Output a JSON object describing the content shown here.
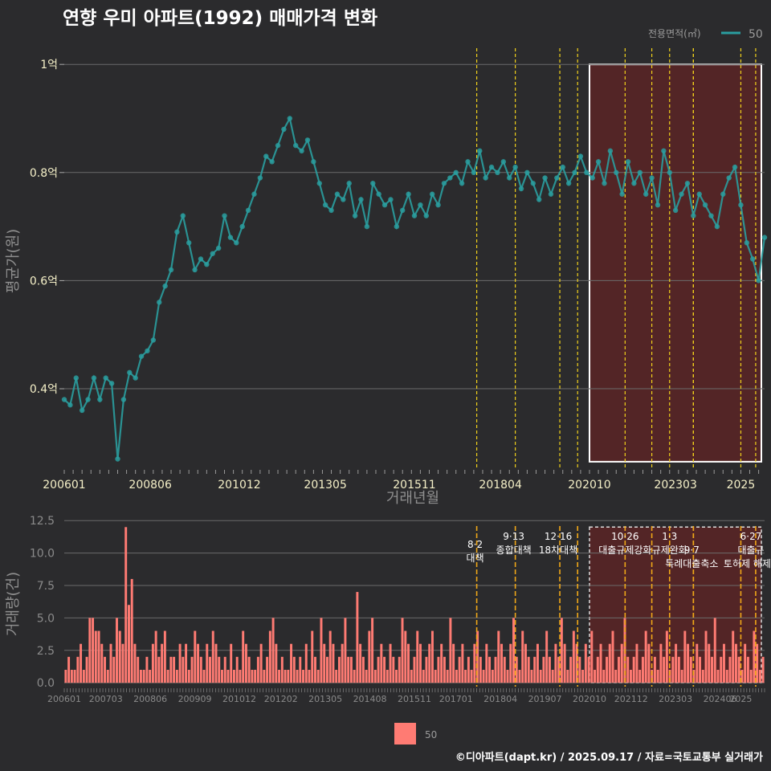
{
  "title": "연향 우미 아파트(1992) 매매가격 변화",
  "caption": "©디아파트(dapt.kr) / 2025.09.17 / 자료=국토교통부 실거래가",
  "colors": {
    "background": "#2b2b2d",
    "price_line": "#2a9d9f",
    "volume_bar": "#ff7b73",
    "policy_line": "#f2d21b",
    "highlight_fill": "#5a2426"
  },
  "chart_data": [
    {
      "type": "line",
      "xlabel": "거래년월",
      "ylabel": "평균가(원)",
      "x_ticks": [
        "200601",
        "200806",
        "201012",
        "201305",
        "201511",
        "201804",
        "202010",
        "202303",
        "2025"
      ],
      "y_ticks": [
        "0.4억",
        "0.6억",
        "0.8억",
        "1억"
      ],
      "y_tick_values": [
        0.4,
        0.6,
        0.8,
        1.0
      ],
      "ylim": [
        0.25,
        1.03
      ],
      "xlim": [
        "2006-01",
        "2025-09"
      ],
      "grid": true,
      "legend": {
        "title": "전용면적(㎡)",
        "position": "top-right",
        "entries": [
          "50"
        ]
      },
      "series": [
        {
          "name": "50",
          "points": [
            [
              "2006-01",
              0.38
            ],
            [
              "2006-03",
              0.37
            ],
            [
              "2006-05",
              0.42
            ],
            [
              "2006-07",
              0.36
            ],
            [
              "2006-09",
              0.38
            ],
            [
              "2006-11",
              0.42
            ],
            [
              "2007-01",
              0.38
            ],
            [
              "2007-03",
              0.42
            ],
            [
              "2007-05",
              0.41
            ],
            [
              "2007-07",
              0.27
            ],
            [
              "2007-09",
              0.38
            ],
            [
              "2007-11",
              0.43
            ],
            [
              "2008-01",
              0.42
            ],
            [
              "2008-03",
              0.46
            ],
            [
              "2008-05",
              0.47
            ],
            [
              "2008-07",
              0.49
            ],
            [
              "2008-09",
              0.56
            ],
            [
              "2008-11",
              0.59
            ],
            [
              "2009-01",
              0.62
            ],
            [
              "2009-03",
              0.69
            ],
            [
              "2009-05",
              0.72
            ],
            [
              "2009-07",
              0.67
            ],
            [
              "2009-09",
              0.62
            ],
            [
              "2009-11",
              0.64
            ],
            [
              "2010-01",
              0.63
            ],
            [
              "2010-03",
              0.65
            ],
            [
              "2010-05",
              0.66
            ],
            [
              "2010-07",
              0.72
            ],
            [
              "2010-09",
              0.68
            ],
            [
              "2010-11",
              0.67
            ],
            [
              "2011-01",
              0.7
            ],
            [
              "2011-03",
              0.73
            ],
            [
              "2011-05",
              0.76
            ],
            [
              "2011-07",
              0.79
            ],
            [
              "2011-09",
              0.83
            ],
            [
              "2011-11",
              0.82
            ],
            [
              "2012-01",
              0.85
            ],
            [
              "2012-03",
              0.88
            ],
            [
              "2012-05",
              0.9
            ],
            [
              "2012-07",
              0.85
            ],
            [
              "2012-09",
              0.84
            ],
            [
              "2012-11",
              0.86
            ],
            [
              "2013-01",
              0.82
            ],
            [
              "2013-03",
              0.78
            ],
            [
              "2013-05",
              0.74
            ],
            [
              "2013-07",
              0.73
            ],
            [
              "2013-09",
              0.76
            ],
            [
              "2013-11",
              0.75
            ],
            [
              "2014-01",
              0.78
            ],
            [
              "2014-03",
              0.72
            ],
            [
              "2014-05",
              0.75
            ],
            [
              "2014-07",
              0.7
            ],
            [
              "2014-09",
              0.78
            ],
            [
              "2014-11",
              0.76
            ],
            [
              "2015-01",
              0.74
            ],
            [
              "2015-03",
              0.75
            ],
            [
              "2015-05",
              0.7
            ],
            [
              "2015-07",
              0.73
            ],
            [
              "2015-09",
              0.76
            ],
            [
              "2015-11",
              0.72
            ],
            [
              "2016-01",
              0.74
            ],
            [
              "2016-03",
              0.72
            ],
            [
              "2016-05",
              0.76
            ],
            [
              "2016-07",
              0.74
            ],
            [
              "2016-09",
              0.78
            ],
            [
              "2016-11",
              0.79
            ],
            [
              "2017-01",
              0.8
            ],
            [
              "2017-03",
              0.78
            ],
            [
              "2017-05",
              0.82
            ],
            [
              "2017-07",
              0.8
            ],
            [
              "2017-09",
              0.84
            ],
            [
              "2017-11",
              0.79
            ],
            [
              "2018-01",
              0.81
            ],
            [
              "2018-03",
              0.8
            ],
            [
              "2018-05",
              0.82
            ],
            [
              "2018-07",
              0.79
            ],
            [
              "2018-09",
              0.81
            ],
            [
              "2018-11",
              0.77
            ],
            [
              "2019-01",
              0.8
            ],
            [
              "2019-03",
              0.78
            ],
            [
              "2019-05",
              0.75
            ],
            [
              "2019-07",
              0.79
            ],
            [
              "2019-09",
              0.76
            ],
            [
              "2019-11",
              0.79
            ],
            [
              "2020-01",
              0.81
            ],
            [
              "2020-03",
              0.78
            ],
            [
              "2020-05",
              0.8
            ],
            [
              "2020-07",
              0.83
            ],
            [
              "2020-09",
              0.8
            ],
            [
              "2020-11",
              0.79
            ],
            [
              "2021-01",
              0.82
            ],
            [
              "2021-03",
              0.78
            ],
            [
              "2021-05",
              0.84
            ],
            [
              "2021-07",
              0.8
            ],
            [
              "2021-09",
              0.76
            ],
            [
              "2021-11",
              0.82
            ],
            [
              "2022-01",
              0.78
            ],
            [
              "2022-03",
              0.8
            ],
            [
              "2022-05",
              0.76
            ],
            [
              "2022-07",
              0.79
            ],
            [
              "2022-09",
              0.74
            ],
            [
              "2022-11",
              0.84
            ],
            [
              "2023-01",
              0.8
            ],
            [
              "2023-03",
              0.73
            ],
            [
              "2023-05",
              0.76
            ],
            [
              "2023-07",
              0.78
            ],
            [
              "2023-09",
              0.72
            ],
            [
              "2023-11",
              0.76
            ],
            [
              "2024-01",
              0.74
            ],
            [
              "2024-03",
              0.72
            ],
            [
              "2024-05",
              0.7
            ],
            [
              "2024-07",
              0.76
            ],
            [
              "2024-09",
              0.79
            ],
            [
              "2024-11",
              0.81
            ],
            [
              "2025-01",
              0.74
            ],
            [
              "2025-03",
              0.67
            ],
            [
              "2025-05",
              0.64
            ],
            [
              "2025-07",
              0.6
            ],
            [
              "2025-09",
              0.68
            ]
          ]
        }
      ],
      "highlight_region": {
        "x_start": "2020-10",
        "x_end": "2025-09",
        "y_start": 0.265,
        "y_end": 1.0
      }
    },
    {
      "type": "bar",
      "xlabel": "",
      "ylabel": "거래량(건)",
      "x_ticks": [
        "200601",
        "200703",
        "200806",
        "200909",
        "201012",
        "201202",
        "201305",
        "201408",
        "201511",
        "201701",
        "201804",
        "201907",
        "202010",
        "202112",
        "202303",
        "202406",
        "2025"
      ],
      "y_ticks": [
        "0.0",
        "2.5",
        "5.0",
        "7.5",
        "10.0",
        "12.5"
      ],
      "y_tick_values": [
        0,
        2.5,
        5,
        7.5,
        10,
        12.5
      ],
      "ylim": [
        -0.3,
        12.7
      ],
      "xlim": [
        "2006-01",
        "2025-09"
      ],
      "legend": {
        "position": "bottom",
        "entries": [
          "50"
        ]
      },
      "values": [
        1,
        2,
        1,
        1,
        2,
        3,
        1,
        2,
        5,
        5,
        4,
        4,
        3,
        2,
        1,
        3,
        2,
        5,
        4,
        3,
        12,
        6,
        8,
        3,
        2,
        1,
        1,
        2,
        1,
        3,
        4,
        2,
        3,
        4,
        1,
        2,
        2,
        1,
        3,
        2,
        3,
        1,
        2,
        4,
        3,
        2,
        1,
        3,
        2,
        4,
        3,
        2,
        1,
        2,
        1,
        3,
        1,
        2,
        1,
        4,
        3,
        2,
        1,
        1,
        2,
        3,
        1,
        2,
        4,
        5,
        3,
        1,
        2,
        1,
        1,
        3,
        2,
        1,
        2,
        1,
        3,
        1,
        4,
        2,
        1,
        5,
        3,
        2,
        4,
        3,
        1,
        2,
        3,
        5,
        2,
        2,
        1,
        7,
        3,
        2,
        1,
        4,
        5,
        1,
        2,
        3,
        2,
        1,
        3,
        2,
        1,
        2,
        5,
        4,
        3,
        1,
        2,
        4,
        3,
        1,
        2,
        3,
        4,
        1,
        2,
        3,
        2,
        1,
        5,
        3,
        1,
        2,
        3,
        1,
        2,
        1,
        3,
        4,
        2,
        1,
        3,
        2,
        1,
        2,
        4,
        3,
        2,
        1,
        3,
        5,
        2,
        1,
        4,
        3,
        2,
        1,
        2,
        3,
        1,
        2,
        4,
        2,
        1,
        3,
        2,
        5,
        3,
        1,
        2,
        4,
        3,
        2,
        1,
        3,
        2,
        4,
        1,
        2,
        3,
        1,
        2,
        3,
        4,
        1,
        2,
        3,
        5,
        2,
        1,
        2,
        3,
        1,
        2,
        4,
        3,
        1,
        2,
        1,
        3,
        2,
        4,
        1,
        2,
        3,
        2,
        1,
        4,
        3,
        2,
        1,
        3,
        2,
        1,
        4,
        3,
        2,
        5,
        1,
        2,
        3,
        1,
        2,
        4,
        3,
        2,
        1,
        3,
        2,
        1,
        4,
        3,
        1,
        2
      ],
      "highlight_region": {
        "x_start": "2020-10",
        "x_end": "2025-09",
        "y_start": 0,
        "y_end": 12.0
      }
    }
  ],
  "policies": [
    {
      "x": "2017-08",
      "date": "8·2",
      "name": "대책"
    },
    {
      "x": "2018-09",
      "date": "9·13",
      "name": "종합대책"
    },
    {
      "x": "2019-12",
      "date": "12·16",
      "name": "18차대책"
    },
    {
      "x": "2020-06",
      "date": "",
      "name": ""
    },
    {
      "x": "2021-10",
      "date": "10·26",
      "name": "대출규제강화"
    },
    {
      "x": "2022-07",
      "date": "",
      "name": ""
    },
    {
      "x": "2023-01",
      "date": "1·3",
      "name": "규제완화"
    },
    {
      "x": "2023-09",
      "date": "",
      "name": "9·7"
    },
    {
      "x": "2023-09",
      "date": "",
      "name": "특례대출축소"
    },
    {
      "x": "2025-01",
      "date": "",
      "name": "토허제 해제"
    },
    {
      "x": "2025-06",
      "date": "6·27",
      "name": "대출규"
    }
  ]
}
